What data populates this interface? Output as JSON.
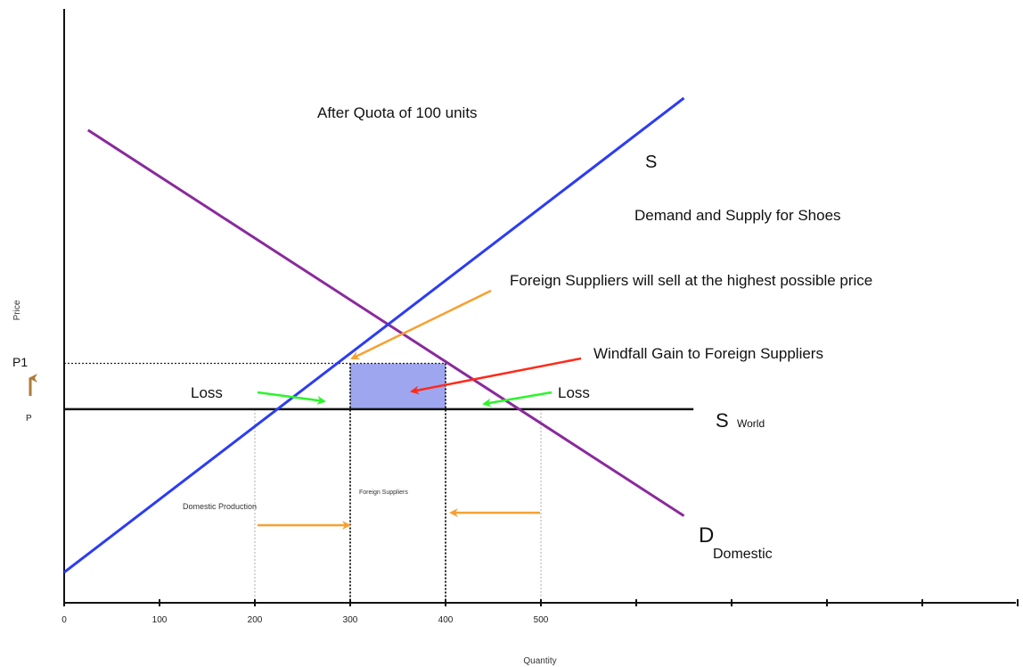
{
  "chart_data": {
    "type": "line",
    "title": "After Quota of 100 units",
    "subtitle": "Demand and Supply for Shoes",
    "xlabel": "Quantity",
    "ylabel": "Price",
    "xlim": [
      0,
      1000
    ],
    "x_ticks": [
      0,
      100,
      200,
      300,
      400,
      500
    ],
    "y_tick_labels": [
      "P1",
      "P"
    ],
    "series": [
      {
        "name": "S",
        "kind": "domestic-supply",
        "color": "#2b3cf5",
        "x": [
          0,
          650
        ],
        "y": [
          20,
          331
        ]
      },
      {
        "name": "D",
        "name_sub": "Domestic",
        "kind": "domestic-demand",
        "color": "#8a2a9c",
        "x": [
          25,
          650
        ],
        "y": [
          310,
          57
        ]
      },
      {
        "name": "S",
        "name_sub": "World",
        "kind": "world-supply",
        "color": "#111111",
        "x": [
          0,
          660
        ],
        "y": [
          127,
          127
        ]
      }
    ],
    "price_levels": {
      "P1": 157,
      "P": 127
    },
    "quantities": {
      "domestic_production": 300,
      "quota_end": 400,
      "world_price_supply": 200,
      "world_price_demand": 500
    },
    "windfall_rect": {
      "x0": 300,
      "x1": 400,
      "y0": 127,
      "y1": 157,
      "color": "#9fa6f0"
    },
    "annotations": [
      {
        "text": "Foreign Suppliers will sell at the highest possible price",
        "color": "#111111",
        "arrow_color": "#f7a030"
      },
      {
        "text": "Windfall Gain to Foreign Suppliers",
        "color": "#111111",
        "arrow_color": "#ff2a1a"
      },
      {
        "text": "Loss",
        "side": "left",
        "arrow_color": "#2bf52b"
      },
      {
        "text": "Loss",
        "side": "right",
        "arrow_color": "#2bf52b"
      },
      {
        "text": "Domestic Production",
        "arrow_color": "#f7a030"
      },
      {
        "text": "Foreign Suppliers",
        "arrow_color": "#f7a030"
      }
    ],
    "grid": false,
    "legend": "none"
  }
}
